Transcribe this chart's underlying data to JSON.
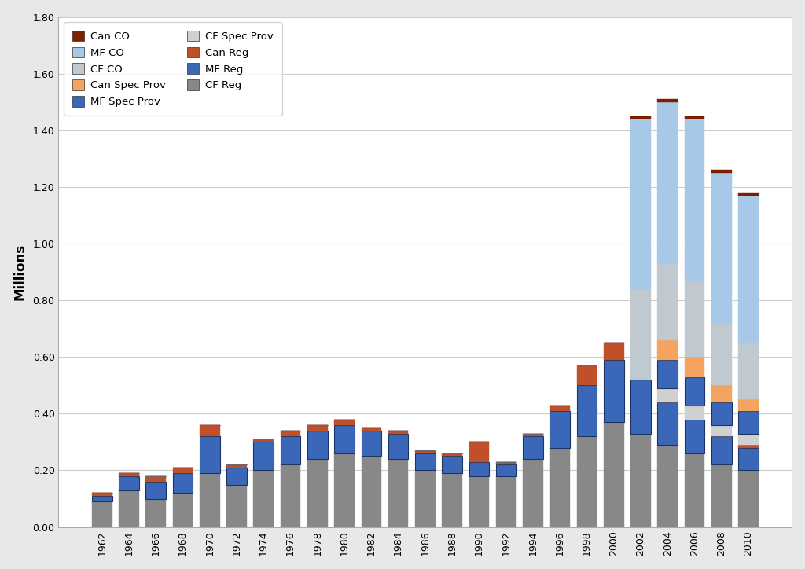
{
  "ylabel": "Millions",
  "years": [
    1962,
    1964,
    1966,
    1968,
    1970,
    1972,
    1974,
    1976,
    1978,
    1980,
    1982,
    1984,
    1986,
    1988,
    1990,
    1992,
    1994,
    1996,
    1998,
    2000,
    2002,
    2004,
    2006,
    2008,
    2010
  ],
  "series": {
    "CF Reg": [
      0.09,
      0.13,
      0.1,
      0.12,
      0.19,
      0.15,
      0.2,
      0.22,
      0.24,
      0.26,
      0.25,
      0.24,
      0.2,
      0.19,
      0.18,
      0.18,
      0.24,
      0.28,
      0.32,
      0.37,
      0.33,
      0.29,
      0.26,
      0.22,
      0.2
    ],
    "MF Reg": [
      0.02,
      0.05,
      0.06,
      0.07,
      0.13,
      0.06,
      0.1,
      0.1,
      0.1,
      0.1,
      0.09,
      0.09,
      0.06,
      0.06,
      0.05,
      0.04,
      0.08,
      0.13,
      0.18,
      0.22,
      0.19,
      0.15,
      0.12,
      0.1,
      0.08
    ],
    "Can Reg": [
      0.01,
      0.01,
      0.02,
      0.02,
      0.04,
      0.01,
      0.01,
      0.02,
      0.02,
      0.02,
      0.01,
      0.01,
      0.01,
      0.01,
      0.07,
      0.01,
      0.01,
      0.02,
      0.07,
      0.06,
      0.0,
      0.0,
      0.0,
      0.0,
      0.01
    ],
    "CF Spec Prov": [
      0.0,
      0.0,
      0.0,
      0.0,
      0.0,
      0.0,
      0.0,
      0.0,
      0.0,
      0.0,
      0.0,
      0.0,
      0.0,
      0.0,
      0.0,
      0.0,
      0.0,
      0.0,
      0.0,
      0.0,
      0.0,
      0.05,
      0.05,
      0.04,
      0.04
    ],
    "MF Spec Prov": [
      0.0,
      0.0,
      0.0,
      0.0,
      0.0,
      0.0,
      0.0,
      0.0,
      0.0,
      0.0,
      0.0,
      0.0,
      0.0,
      0.0,
      0.0,
      0.0,
      0.0,
      0.0,
      0.0,
      0.0,
      0.0,
      0.1,
      0.1,
      0.08,
      0.08
    ],
    "Can Spec Prov": [
      0.0,
      0.0,
      0.0,
      0.0,
      0.0,
      0.0,
      0.0,
      0.0,
      0.0,
      0.0,
      0.0,
      0.0,
      0.0,
      0.0,
      0.0,
      0.0,
      0.0,
      0.0,
      0.0,
      0.0,
      0.0,
      0.07,
      0.07,
      0.06,
      0.04
    ],
    "CF CO": [
      0.0,
      0.0,
      0.0,
      0.0,
      0.0,
      0.0,
      0.0,
      0.0,
      0.0,
      0.0,
      0.0,
      0.0,
      0.0,
      0.0,
      0.0,
      0.0,
      0.0,
      0.0,
      0.0,
      0.0,
      0.32,
      0.27,
      0.27,
      0.22,
      0.2
    ],
    "MF CO": [
      0.0,
      0.0,
      0.0,
      0.0,
      0.0,
      0.0,
      0.0,
      0.0,
      0.0,
      0.0,
      0.0,
      0.0,
      0.0,
      0.0,
      0.0,
      0.0,
      0.0,
      0.0,
      0.0,
      0.0,
      0.6,
      0.57,
      0.57,
      0.53,
      0.52
    ],
    "Can CO": [
      0.0,
      0.0,
      0.0,
      0.0,
      0.0,
      0.0,
      0.0,
      0.0,
      0.0,
      0.0,
      0.0,
      0.0,
      0.0,
      0.0,
      0.0,
      0.0,
      0.0,
      0.0,
      0.0,
      0.0,
      0.01,
      0.01,
      0.01,
      0.01,
      0.01
    ]
  },
  "colors": {
    "CF Reg": "#888888",
    "MF Reg": "#3A67B8",
    "Can Reg": "#C0502A",
    "CF Spec Prov": "#D0D0D0",
    "MF Spec Prov": "#3A67B8",
    "Can Spec Prov": "#F4A460",
    "CF CO": "#C0C8D0",
    "MF CO": "#A8C8E8",
    "Can CO": "#7B2000"
  },
  "ylim": [
    0,
    1.8
  ],
  "yticks": [
    0.0,
    0.2,
    0.4,
    0.6,
    0.8,
    1.0,
    1.2,
    1.4,
    1.6,
    1.8
  ],
  "background_color": "#E8E8E8",
  "plot_background": "#FFFFFF"
}
